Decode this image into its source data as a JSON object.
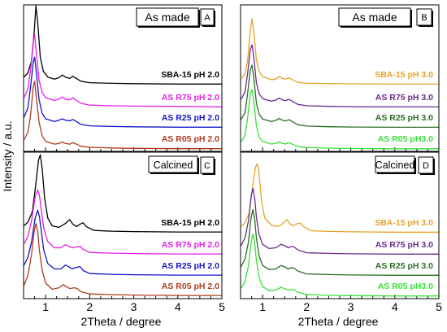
{
  "ylabel": "Intensity / a.u.",
  "colors": {
    "black": "#000000",
    "magenta": "#e61ee6",
    "blue": "#1414c8",
    "brown": "#b03a1e",
    "orange": "#e8a227",
    "purple": "#6a2a8a",
    "darkgreen": "#2a6e22",
    "lightgreen": "#39e039"
  },
  "chart_data": [
    {
      "panel": "A",
      "type": "line",
      "title": "As made",
      "xlabel": "",
      "xlim": [
        0.5,
        5
      ],
      "xticks": [],
      "series": [
        {
          "name": "SBA-15  pH 2.0",
          "color": "#000000",
          "x": [
            0.5,
            0.6,
            0.68,
            0.74,
            0.78,
            0.82,
            0.88,
            0.95,
            1.05,
            1.2,
            1.3,
            1.38,
            1.45,
            1.55,
            1.62,
            1.7,
            1.8,
            2.0,
            2.5,
            3,
            4,
            5
          ],
          "y": [
            1.2,
            1.8,
            3.5,
            7.5,
            11.5,
            9.0,
            4.0,
            2.0,
            1.2,
            0.9,
            1.1,
            1.5,
            1.2,
            1.0,
            1.3,
            1.0,
            0.6,
            0.4,
            0.3,
            0.25,
            0.2,
            0.2
          ]
        },
        {
          "name": "AS R75  pH 2.0",
          "color": "#e61ee6",
          "x": [
            0.5,
            0.6,
            0.66,
            0.72,
            0.75,
            0.79,
            0.85,
            0.92,
            1.0,
            1.2,
            1.3,
            1.38,
            1.45,
            1.55,
            1.62,
            1.7,
            1.8,
            2.0,
            2.5,
            3,
            4,
            5
          ],
          "y": [
            1.5,
            2.8,
            5.5,
            9.5,
            10.5,
            8.0,
            4.0,
            2.3,
            1.5,
            1.1,
            1.3,
            1.6,
            1.3,
            1.2,
            1.5,
            1.1,
            0.7,
            0.45,
            0.35,
            0.3,
            0.25,
            0.2
          ]
        },
        {
          "name": "AS R25  pH 2.0",
          "color": "#1414c8",
          "x": [
            0.5,
            0.6,
            0.66,
            0.72,
            0.75,
            0.79,
            0.85,
            0.92,
            1.0,
            1.2,
            1.3,
            1.38,
            1.45,
            1.55,
            1.62,
            1.7,
            1.8,
            2.0,
            2.5,
            3,
            4,
            5
          ],
          "y": [
            1.6,
            3.0,
            6.0,
            9.5,
            10.2,
            8.0,
            4.2,
            2.2,
            1.4,
            1.0,
            1.2,
            1.4,
            1.2,
            1.1,
            1.3,
            1.0,
            0.6,
            0.4,
            0.3,
            0.25,
            0.2,
            0.2
          ]
        },
        {
          "name": "AS R05  pH 2.0",
          "color": "#b03a1e",
          "x": [
            0.5,
            0.6,
            0.66,
            0.72,
            0.75,
            0.79,
            0.85,
            0.92,
            1.0,
            1.2,
            1.3,
            1.38,
            1.45,
            1.55,
            1.62,
            1.7,
            1.8,
            2.0,
            2.5,
            3,
            4,
            5
          ],
          "y": [
            1.4,
            2.5,
            5.0,
            9.0,
            9.8,
            7.5,
            4.0,
            2.0,
            1.2,
            0.8,
            0.9,
            1.1,
            0.9,
            0.8,
            1.0,
            0.8,
            0.5,
            0.35,
            0.25,
            0.2,
            0.15,
            0.15
          ]
        }
      ]
    },
    {
      "panel": "B",
      "type": "line",
      "title": "As made",
      "xlabel": "",
      "xlim": [
        0.5,
        5
      ],
      "xticks": [],
      "series": [
        {
          "name": "SBA-15  pH 3.0",
          "color": "#e8a227",
          "x": [
            0.5,
            0.6,
            0.66,
            0.72,
            0.76,
            0.8,
            0.86,
            0.92,
            1.0,
            1.2,
            1.3,
            1.38,
            1.45,
            1.52,
            1.6,
            1.7,
            1.8,
            2.0,
            2.5,
            3,
            4,
            5
          ],
          "y": [
            1.0,
            1.8,
            4.0,
            8.5,
            10.5,
            8.5,
            4.0,
            2.2,
            1.4,
            0.9,
            1.0,
            1.4,
            1.1,
            1.0,
            1.2,
            0.8,
            0.5,
            0.35,
            0.3,
            0.25,
            0.2,
            0.2
          ]
        },
        {
          "name": "AS R75 pH 3.0",
          "color": "#6a2a8a",
          "x": [
            0.5,
            0.6,
            0.66,
            0.72,
            0.76,
            0.8,
            0.86,
            0.92,
            1.0,
            1.2,
            1.3,
            1.38,
            1.45,
            1.52,
            1.6,
            1.7,
            1.8,
            2.0,
            2.5,
            3,
            4,
            5
          ],
          "y": [
            1.4,
            2.5,
            5.5,
            9.2,
            10.0,
            8.0,
            4.0,
            2.3,
            1.5,
            1.1,
            1.3,
            1.6,
            1.3,
            1.2,
            1.4,
            1.0,
            0.6,
            0.4,
            0.3,
            0.25,
            0.2,
            0.2
          ]
        },
        {
          "name": "AS R25 pH 3.0",
          "color": "#2a6e22",
          "x": [
            0.5,
            0.6,
            0.66,
            0.72,
            0.76,
            0.8,
            0.86,
            0.92,
            1.0,
            1.2,
            1.3,
            1.38,
            1.45,
            1.52,
            1.6,
            1.7,
            1.8,
            2.0,
            2.5,
            3,
            4,
            5
          ],
          "y": [
            1.4,
            2.5,
            5.5,
            9.2,
            10.0,
            8.0,
            4.0,
            2.3,
            1.5,
            1.1,
            1.3,
            1.6,
            1.3,
            1.2,
            1.4,
            1.0,
            0.6,
            0.4,
            0.3,
            0.25,
            0.2,
            0.2
          ]
        },
        {
          "name": "AS R05 pH3.0",
          "color": "#39e039",
          "x": [
            0.5,
            0.6,
            0.66,
            0.72,
            0.76,
            0.8,
            0.86,
            0.92,
            1.0,
            1.2,
            1.3,
            1.38,
            1.45,
            1.52,
            1.6,
            1.7,
            1.8,
            2.0,
            2.5,
            3,
            4,
            5
          ],
          "y": [
            1.2,
            2.2,
            5.0,
            8.8,
            9.5,
            7.5,
            3.8,
            2.0,
            1.3,
            0.9,
            1.0,
            1.2,
            1.0,
            0.9,
            1.1,
            0.8,
            0.5,
            0.35,
            0.25,
            0.2,
            0.15,
            0.15
          ]
        }
      ]
    },
    {
      "panel": "C",
      "type": "line",
      "title": "Calcined",
      "xlabel": "2Theta / degree",
      "xlim": [
        0.5,
        5
      ],
      "xticks": [
        "1",
        "2",
        "3",
        "4",
        "5"
      ],
      "series": [
        {
          "name": "SBA-15  pH 2.0",
          "color": "#000000",
          "x": [
            0.5,
            0.6,
            0.7,
            0.78,
            0.84,
            0.88,
            0.92,
            0.98,
            1.05,
            1.15,
            1.3,
            1.45,
            1.55,
            1.62,
            1.7,
            1.78,
            1.85,
            1.92,
            2.1,
            2.5,
            3,
            4,
            5
          ],
          "y": [
            1.0,
            1.5,
            2.8,
            6.5,
            9.5,
            10.2,
            8.5,
            4.5,
            2.0,
            1.0,
            0.8,
            1.3,
            1.8,
            1.2,
            0.9,
            1.2,
            1.4,
            0.9,
            0.4,
            0.3,
            0.25,
            0.2,
            0.2
          ]
        },
        {
          "name": "AS R75 pH 2.0",
          "color": "#e61ee6",
          "x": [
            0.5,
            0.6,
            0.68,
            0.76,
            0.82,
            0.86,
            0.9,
            0.96,
            1.05,
            1.2,
            1.35,
            1.45,
            1.52,
            1.6,
            1.7,
            1.78,
            1.85,
            2.0,
            2.5,
            3,
            4,
            5
          ],
          "y": [
            1.5,
            2.5,
            4.5,
            7.5,
            8.5,
            7.8,
            6.0,
            3.5,
            1.8,
            1.0,
            1.0,
            1.4,
            1.2,
            1.0,
            1.1,
            1.2,
            0.8,
            0.4,
            0.3,
            0.25,
            0.2,
            0.2
          ]
        },
        {
          "name": "AS R25 pH 2.0",
          "color": "#1414c8",
          "x": [
            0.5,
            0.6,
            0.68,
            0.76,
            0.82,
            0.86,
            0.9,
            0.96,
            1.05,
            1.2,
            1.35,
            1.45,
            1.52,
            1.6,
            1.7,
            1.78,
            1.85,
            2.0,
            2.5,
            3,
            4,
            5
          ],
          "y": [
            1.5,
            2.5,
            4.5,
            7.5,
            8.6,
            7.8,
            6.0,
            3.4,
            1.7,
            1.0,
            1.0,
            1.5,
            1.3,
            1.0,
            1.2,
            1.3,
            0.8,
            0.4,
            0.3,
            0.25,
            0.2,
            0.2
          ]
        },
        {
          "name": "AS R05 pH 2.0",
          "color": "#b03a1e",
          "x": [
            0.5,
            0.6,
            0.68,
            0.74,
            0.78,
            0.82,
            0.86,
            0.92,
            1.0,
            1.15,
            1.3,
            1.4,
            1.48,
            1.55,
            1.65,
            1.72,
            1.8,
            2.0,
            2.5,
            3,
            4,
            5
          ],
          "y": [
            1.5,
            2.8,
            5.5,
            8.5,
            9.5,
            8.5,
            6.0,
            3.5,
            1.8,
            1.0,
            1.2,
            1.6,
            1.3,
            1.1,
            1.2,
            1.1,
            0.7,
            0.4,
            0.3,
            0.25,
            0.2,
            0.2
          ]
        }
      ]
    },
    {
      "panel": "D",
      "type": "line",
      "title": "Calcined",
      "xlabel": "2Theta / degree",
      "xlim": [
        0.5,
        5
      ],
      "xticks": [
        "1",
        "2",
        "3",
        "4",
        "5"
      ],
      "series": [
        {
          "name": "SBA-15  pH 3.0",
          "color": "#e8a227",
          "x": [
            0.5,
            0.6,
            0.7,
            0.78,
            0.84,
            0.88,
            0.92,
            0.98,
            1.05,
            1.2,
            1.35,
            1.45,
            1.55,
            1.62,
            1.7,
            1.78,
            1.85,
            1.95,
            2.1,
            2.5,
            3,
            4,
            5
          ],
          "y": [
            1.0,
            1.5,
            3.0,
            7.0,
            9.5,
            10.0,
            8.5,
            4.5,
            2.2,
            1.2,
            1.0,
            1.4,
            2.0,
            1.4,
            1.1,
            1.4,
            1.5,
            0.9,
            0.4,
            0.3,
            0.25,
            0.2,
            0.2
          ]
        },
        {
          "name": "AS R75 pH 3.0",
          "color": "#6a2a8a",
          "x": [
            0.5,
            0.6,
            0.68,
            0.74,
            0.78,
            0.82,
            0.86,
            0.92,
            1.0,
            1.15,
            1.3,
            1.42,
            1.5,
            1.58,
            1.65,
            1.72,
            1.8,
            2.0,
            2.5,
            3,
            4,
            5
          ],
          "y": [
            1.4,
            2.5,
            5.0,
            8.5,
            9.6,
            8.2,
            5.5,
            3.0,
            1.6,
            1.0,
            1.1,
            1.6,
            1.4,
            1.1,
            1.3,
            1.2,
            0.8,
            0.4,
            0.3,
            0.25,
            0.2,
            0.2
          ]
        },
        {
          "name": "AS R25 pH 3.0",
          "color": "#2a6e22",
          "x": [
            0.5,
            0.6,
            0.68,
            0.74,
            0.78,
            0.82,
            0.86,
            0.92,
            1.0,
            1.15,
            1.3,
            1.42,
            1.5,
            1.58,
            1.65,
            1.72,
            1.8,
            2.0,
            2.5,
            3,
            4,
            5
          ],
          "y": [
            1.4,
            2.5,
            5.0,
            8.5,
            9.6,
            8.2,
            5.5,
            3.0,
            1.6,
            1.0,
            1.1,
            1.6,
            1.4,
            1.1,
            1.3,
            1.2,
            0.8,
            0.4,
            0.3,
            0.25,
            0.2,
            0.2
          ]
        },
        {
          "name": "AS R05 pH3.0",
          "color": "#39e039",
          "x": [
            0.5,
            0.6,
            0.68,
            0.74,
            0.78,
            0.82,
            0.86,
            0.92,
            1.0,
            1.15,
            1.3,
            1.42,
            1.5,
            1.58,
            1.65,
            1.72,
            1.8,
            2.0,
            2.5,
            3,
            4,
            5
          ],
          "y": [
            1.2,
            2.2,
            4.5,
            7.8,
            9.0,
            7.8,
            5.2,
            2.8,
            1.5,
            0.9,
            1.0,
            1.4,
            1.2,
            1.0,
            1.1,
            1.0,
            0.7,
            0.35,
            0.25,
            0.2,
            0.15,
            0.15
          ]
        }
      ]
    }
  ]
}
